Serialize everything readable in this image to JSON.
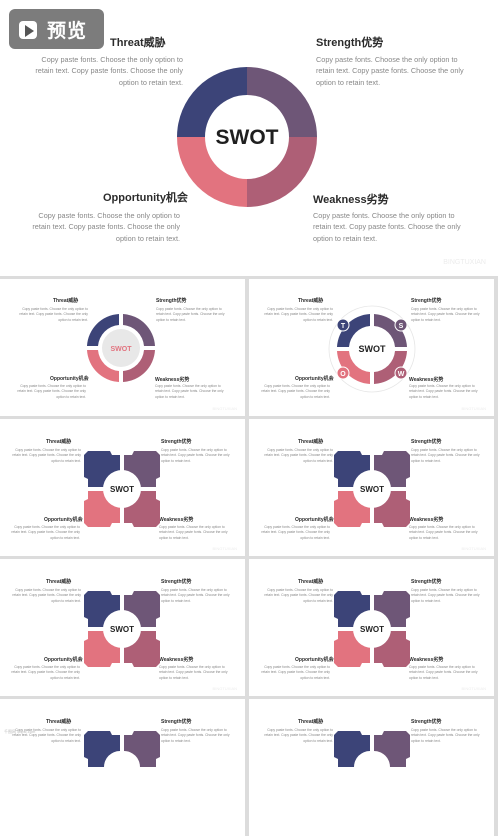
{
  "preview_button": {
    "label": "预览"
  },
  "swot": {
    "center": "SWOT",
    "threat": {
      "title": "Threat威胁",
      "body": "Copy paste fonts. Choose the only option to retain text. Copy paste fonts. Choose the only option to retain text."
    },
    "strength": {
      "title": "Strength优势",
      "body": "Copy paste fonts. Choose the only option to retain text. Copy paste fonts. Choose the only option to retain text."
    },
    "opportunity": {
      "title": "Opportunity机会",
      "body": "Copy paste fonts. Choose the only option to retain text. Copy paste fonts. Choose the only option to retain text."
    },
    "weakness": {
      "title": "Weakness劣势",
      "body": "Copy paste fonts. Choose the only option to retain text. Copy paste fonts. Choose the only option to retain text."
    },
    "letters": [
      "T",
      "S",
      "O",
      "W"
    ]
  },
  "colors": {
    "navy": "#3c4478",
    "purple": "#6e5677",
    "pink": "#e2737f",
    "rose": "#ae5f76"
  },
  "watermark": "BINGTUXIAN",
  "footer_watermark": "千图网 58pic.com"
}
